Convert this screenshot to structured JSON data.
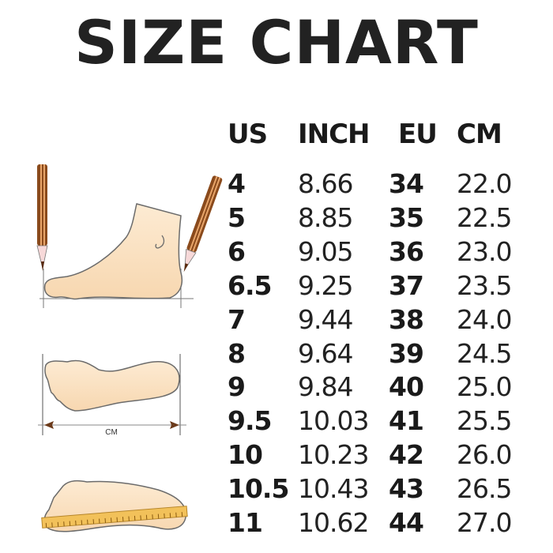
{
  "title": "SIZE CHART",
  "table": {
    "headers": [
      "US",
      "INCH",
      "EU",
      "CM"
    ],
    "rows": [
      [
        "4",
        "8.66",
        "34",
        "22.0"
      ],
      [
        "5",
        "8.85",
        "35",
        "22.5"
      ],
      [
        "6",
        "9.05",
        "36",
        "23.0"
      ],
      [
        "6.5",
        "9.25",
        "37",
        "23.5"
      ],
      [
        "7",
        "9.44",
        "38",
        "24.0"
      ],
      [
        "8",
        "9.64",
        "39",
        "24.5"
      ],
      [
        "9",
        "9.84",
        "40",
        "25.0"
      ],
      [
        "9.5",
        "10.03",
        "41",
        "25.5"
      ],
      [
        "10",
        "10.23",
        "42",
        "26.0"
      ],
      [
        "10.5",
        "10.43",
        "43",
        "26.5"
      ],
      [
        "11",
        "10.62",
        "44",
        "27.0"
      ]
    ]
  },
  "illustrations": {
    "sole_measure_label": "CM",
    "skin_color": "#fbe3c4",
    "outline_color": "#6b6b6b",
    "pencil_color": "#8a4a1c",
    "ruler_color": "#f2c15a"
  }
}
